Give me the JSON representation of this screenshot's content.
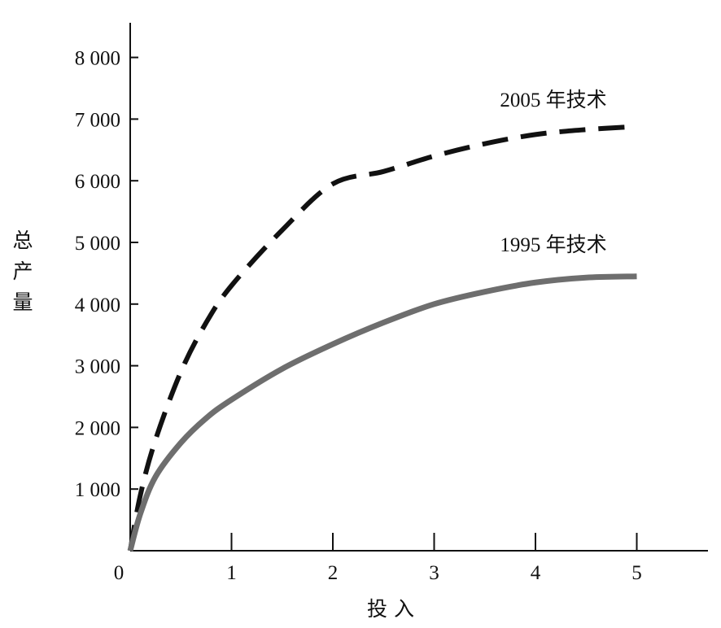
{
  "chart_data": {
    "type": "line",
    "xlabel": "投 入",
    "ylabel": "总产量",
    "xlim": [
      0,
      5.7
    ],
    "ylim": [
      0,
      8300
    ],
    "x_ticks": [
      0,
      1,
      2,
      3,
      4,
      5
    ],
    "x_tick_labels": [
      "0",
      "1",
      "2",
      "3",
      "4",
      "5"
    ],
    "y_ticks": [
      1000,
      2000,
      3000,
      4000,
      5000,
      6000,
      7000,
      8000
    ],
    "y_tick_labels": [
      "1 000",
      "2 000",
      "3 000",
      "4 000",
      "5 000",
      "6 000",
      "7 000",
      "8 000"
    ],
    "grid": false,
    "legend": "inline labels at line ends",
    "x": [
      0,
      0.1,
      0.25,
      0.5,
      0.75,
      1,
      1.5,
      2,
      2.5,
      3,
      3.5,
      4,
      4.5,
      5
    ],
    "series": [
      {
        "name": "2005 年技术",
        "style": "dashed",
        "color": "#111111",
        "values": [
          0,
          900,
          1800,
          2900,
          3700,
          4300,
          5200,
          5950,
          6150,
          6400,
          6600,
          6750,
          6830,
          6880
        ]
      },
      {
        "name": "1995 年技术",
        "style": "solid",
        "color": "#6e6e6e",
        "values": [
          0,
          600,
          1200,
          1750,
          2150,
          2450,
          2950,
          3350,
          3700,
          4000,
          4200,
          4350,
          4430,
          4450
        ]
      }
    ]
  }
}
